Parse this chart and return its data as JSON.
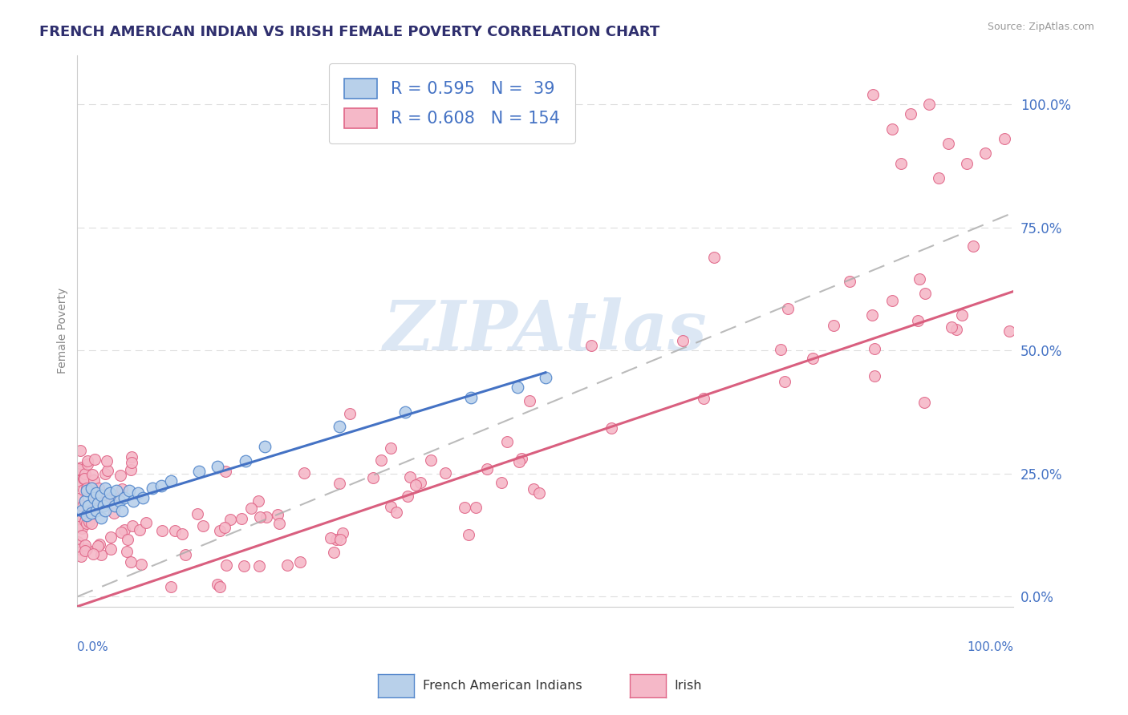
{
  "title": "FRENCH AMERICAN INDIAN VS IRISH FEMALE POVERTY CORRELATION CHART",
  "source": "Source: ZipAtlas.com",
  "ylabel": "Female Poverty",
  "r_french": 0.595,
  "n_french": 39,
  "r_irish": 0.608,
  "n_irish": 154,
  "ytick_labels": [
    "0.0%",
    "25.0%",
    "50.0%",
    "75.0%",
    "100.0%"
  ],
  "ytick_values": [
    0.0,
    0.25,
    0.5,
    0.75,
    1.0
  ],
  "color_french_fill": "#b8d0ea",
  "color_french_edge": "#5588cc",
  "color_irish_fill": "#f5b8c8",
  "color_irish_edge": "#e06688",
  "color_french_line": "#4472c4",
  "color_irish_line": "#d95f7f",
  "color_gray_dash": "#aaaaaa",
  "color_title": "#2f2f6e",
  "color_axis_label": "#4472c4",
  "color_ylabel": "#888888",
  "watermark_text": "ZIPAtlas",
  "watermark_color": "#c5d8ee",
  "french_line_x0": 0.0,
  "french_line_y0": 0.165,
  "french_line_x1": 0.5,
  "french_line_y1": 0.455,
  "irish_line_x0": 0.0,
  "irish_line_y0": -0.02,
  "irish_line_x1": 1.0,
  "irish_line_y1": 0.62,
  "gray_line_x0": 0.0,
  "gray_line_y0": 0.0,
  "gray_line_x1": 1.0,
  "gray_line_y1": 0.78,
  "xlim": [
    0.0,
    1.0
  ],
  "ylim": [
    -0.02,
    1.1
  ]
}
